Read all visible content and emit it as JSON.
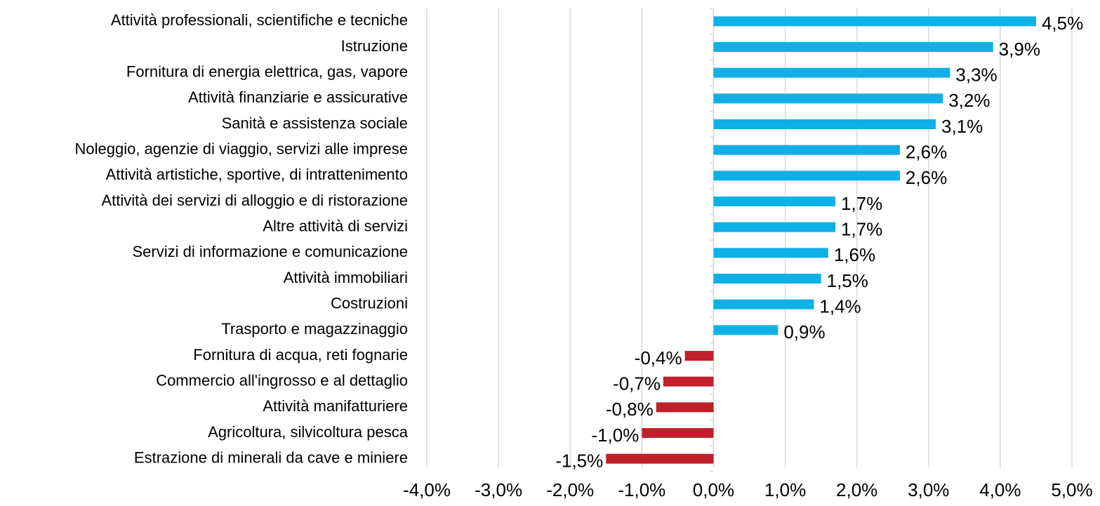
{
  "chart_data": {
    "type": "barh",
    "categories": [
      "Attività professionali, scientifiche e tecniche",
      "Istruzione",
      "Fornitura di energia elettrica, gas, vapore",
      "Attività finanziarie e assicurative",
      "Sanità e assistenza sociale",
      "Noleggio, agenzie di viaggio, servizi alle imprese",
      "Attività artistiche, sportive, di intrattenimento",
      "Attività dei servizi di alloggio e di ristorazione",
      "Altre attività di servizi",
      "Servizi di informazione e comunicazione",
      "Attività immobiliari",
      "Costruzioni",
      "Trasporto e magazzinaggio",
      "Fornitura di acqua, reti fognarie",
      "Commercio all'ingrosso e al dettaglio",
      "Attività manifatturiere",
      "Agricoltura, silvicoltura pesca",
      "Estrazione di minerali da cave e miniere"
    ],
    "values": [
      4.5,
      3.9,
      3.3,
      3.2,
      3.1,
      2.6,
      2.6,
      1.7,
      1.7,
      1.6,
      1.5,
      1.4,
      0.9,
      -0.4,
      -0.7,
      -0.8,
      -1.0,
      -1.5
    ],
    "value_labels": [
      "4,5%",
      "3,9%",
      "3,3%",
      "3,2%",
      "3,1%",
      "2,6%",
      "2,6%",
      "1,7%",
      "1,7%",
      "1,6%",
      "1,5%",
      "1,4%",
      "0,9%",
      "-0,4%",
      "-0,7%",
      "-0,8%",
      "-1,0%",
      "-1,5%"
    ],
    "positive_color": "#0eb0e6",
    "negative_color": "#c0202a",
    "xlim": [
      -4,
      5
    ],
    "xticks": [
      {
        "value": -4,
        "label": "-4,0%"
      },
      {
        "value": -3,
        "label": "-3,0%"
      },
      {
        "value": -2,
        "label": "-2,0%"
      },
      {
        "value": -1,
        "label": "-1,0%"
      },
      {
        "value": 0,
        "label": "0,0%"
      },
      {
        "value": 1,
        "label": "1,0%"
      },
      {
        "value": 2,
        "label": "2,0%"
      },
      {
        "value": 3,
        "label": "3,0%"
      },
      {
        "value": 4,
        "label": "4,0%"
      },
      {
        "value": 5,
        "label": "5,0%"
      }
    ],
    "grid": true
  }
}
